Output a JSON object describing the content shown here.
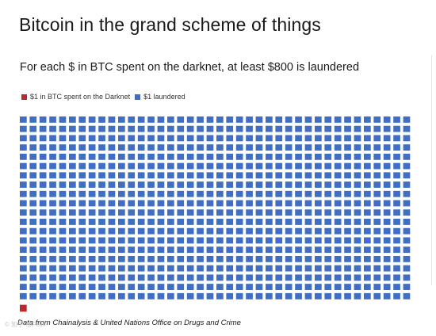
{
  "chart_data": {
    "type": "waffle",
    "title": "Bitcoin in the grand scheme of things",
    "subtitle": "For each $ in BTC spent on the darknet, at least $800 is laundered",
    "legend": [
      {
        "label": "$1 in BTC spent on the Darknet",
        "color": "#c0272d",
        "count": 1
      },
      {
        "label": "$1 laundered",
        "color": "#3f6ec2",
        "count": 800
      }
    ],
    "grid": {
      "columns": 40,
      "rows": 20
    },
    "legend_position": "top-left",
    "source": "Data from Chainalysis & United Nations Office on Drugs and Crime"
  },
  "watermark": "© 知乎 @Felix"
}
